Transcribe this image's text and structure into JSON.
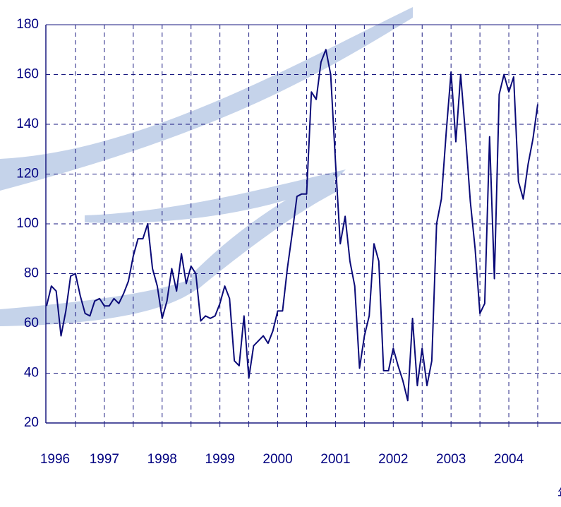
{
  "chart_data": {
    "type": "line",
    "xlabel": "年",
    "categories": [
      "1996",
      null,
      null,
      null,
      null,
      null,
      null,
      null,
      null,
      null,
      null,
      null,
      "1997",
      null,
      null,
      null,
      null,
      null,
      null,
      null,
      null,
      null,
      null,
      null,
      "1998",
      null,
      null,
      null,
      null,
      null,
      null,
      null,
      null,
      null,
      null,
      null,
      "1999",
      null,
      null,
      null,
      null,
      null,
      null,
      null,
      null,
      null,
      null,
      null,
      "2000",
      null,
      null,
      null,
      null,
      null,
      null,
      null,
      null,
      null,
      null,
      null,
      "2001",
      null,
      null,
      null,
      null,
      null,
      null,
      null,
      null,
      null,
      null,
      null,
      "2002",
      null,
      null,
      null,
      null,
      null,
      null,
      null,
      null,
      null,
      null,
      null,
      "2003",
      null,
      null,
      null,
      null,
      null,
      null,
      null,
      null,
      null,
      null,
      null,
      "2004",
      null,
      null,
      null,
      null,
      null,
      null
    ],
    "series": [
      {
        "color": "#0a0a78",
        "values": [
          67,
          75,
          73,
          55,
          65,
          79,
          80,
          71,
          64,
          63,
          69,
          70,
          67,
          67,
          70,
          68,
          72,
          77,
          87,
          94,
          94,
          100,
          82,
          75,
          62,
          69,
          82,
          73,
          88,
          76,
          83,
          80,
          61,
          63,
          62,
          63,
          68,
          75,
          70,
          45,
          43,
          63,
          38,
          51,
          53,
          55,
          52,
          57,
          65,
          65,
          82,
          96,
          111,
          112,
          112,
          153,
          150,
          165,
          170,
          160,
          125,
          92,
          103,
          85,
          75,
          42,
          55,
          63,
          92,
          85,
          41,
          41,
          50,
          43,
          37,
          29,
          62,
          35,
          50,
          35,
          45,
          100,
          110,
          137,
          161,
          133,
          160,
          136,
          109,
          90,
          64,
          68,
          135,
          78,
          152,
          160,
          153,
          159,
          117,
          110,
          124,
          134,
          148
        ]
      }
    ],
    "ylim": [
      20,
      180
    ],
    "yticks": [
      20,
      40,
      60,
      80,
      100,
      120,
      140,
      160,
      180
    ],
    "grid": true
  }
}
